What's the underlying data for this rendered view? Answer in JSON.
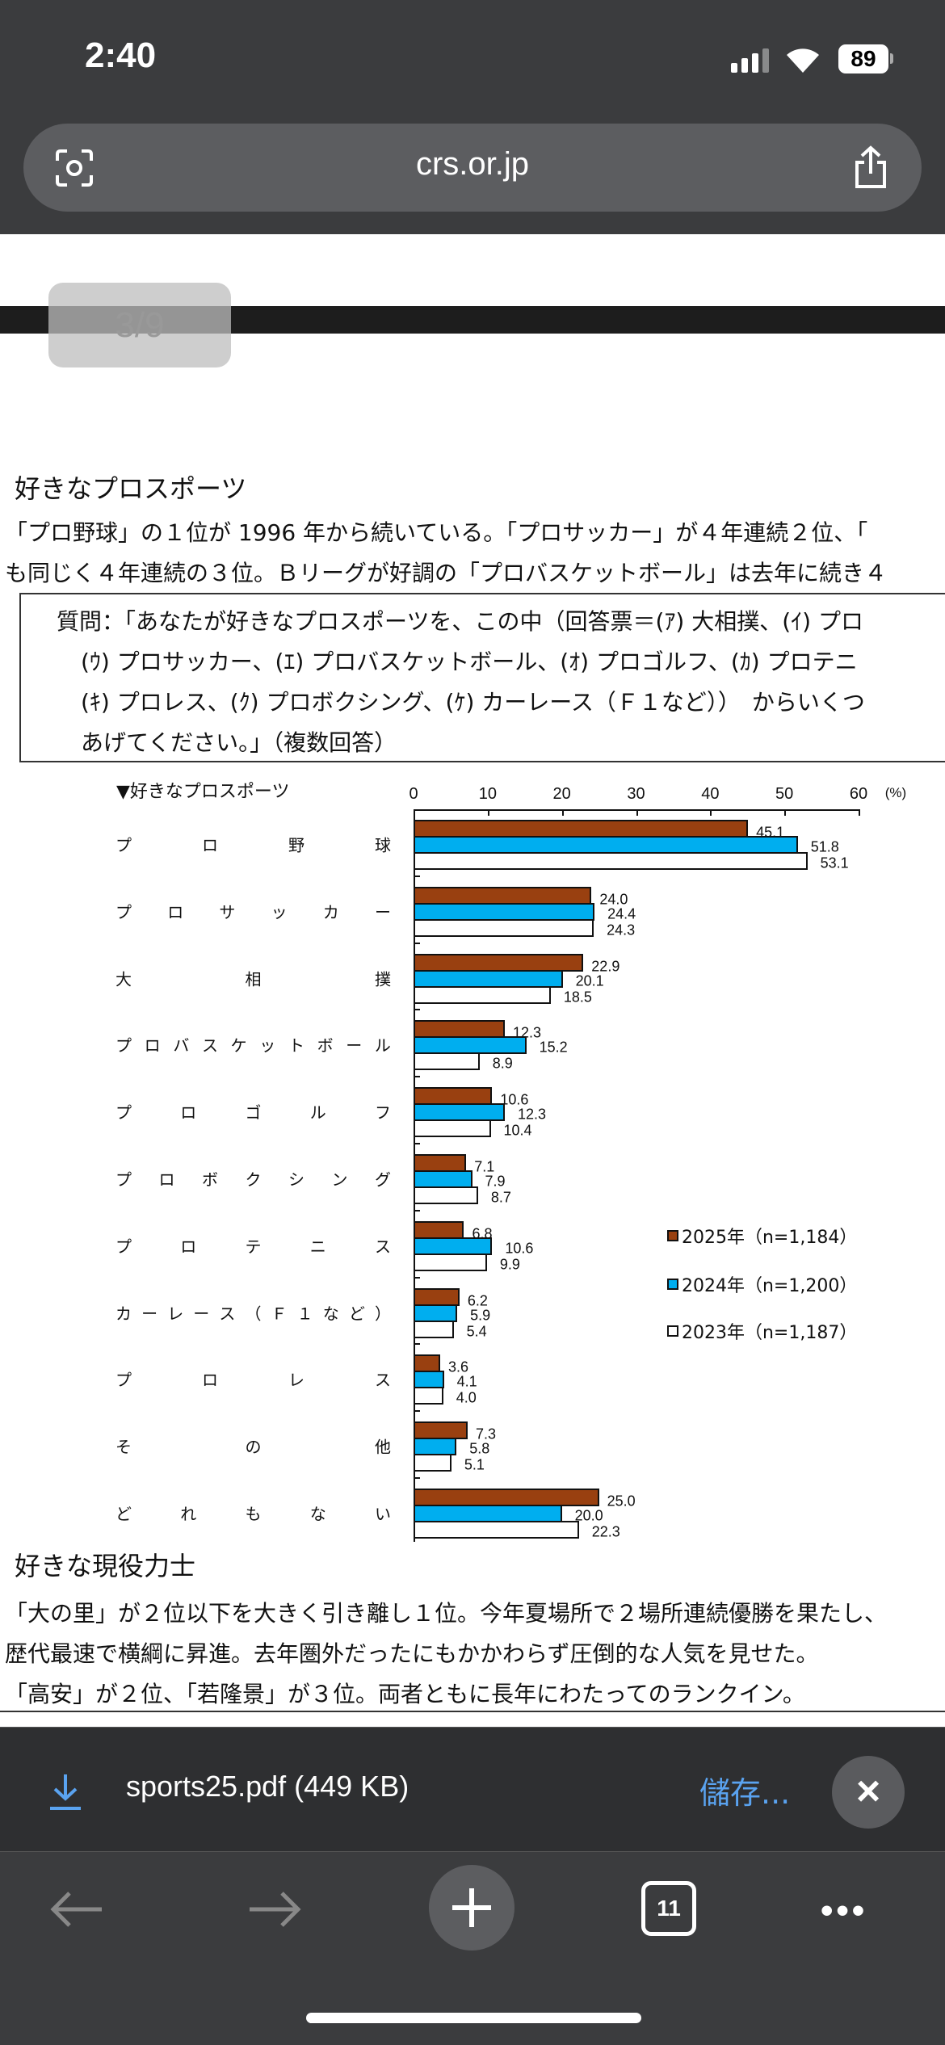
{
  "status_bar": {
    "time": "2:40",
    "battery": "89"
  },
  "browser": {
    "url": "crs.or.jp",
    "page_indicator": "3/9"
  },
  "section1": {
    "heading": "好きなプロスポーツ",
    "paragraph": [
      "「プロ野球」の１位が 1996 年から続いている。「プロサッカー」が４年連続２位、「",
      "も同じく４年連続の３位。Ｂリーグが好調の「プロバスケットボール」は去年に続き４"
    ],
    "question": [
      "質問：「あなたが好きなプロスポーツを、この中（回答票＝(ｱ) 大相撲、(ｲ) プロ",
      "(ｳ) プロサッカー、(ｴ) プロバスケットボール、(ｵ) プロゴルフ、(ｶ) プロテニ",
      "(ｷ) プロレス、(ｸ) プロボクシング、(ｹ) カーレース（Ｆ１など））　からいくつ",
      "あげてください。」（複数回答）"
    ]
  },
  "chart_data": {
    "type": "bar",
    "orientation": "horizontal",
    "title": "▼好きなプロスポーツ",
    "xlim": [
      0,
      60
    ],
    "x_ticks": [
      "0",
      "10",
      "20",
      "30",
      "40",
      "50",
      "60"
    ],
    "unit": "(%)",
    "grid": false,
    "legend_position": "right",
    "categories": [
      "プロ野球",
      "プロサッカー",
      "大相撲",
      "プロバスケットボール",
      "プロゴルフ",
      "プロボクシング",
      "プロテニス",
      "カーレース（Ｆ１など）",
      "プロレス",
      "その他",
      "どれもない"
    ],
    "series": [
      {
        "name": "2025年（n=1,184）",
        "color": "#994010",
        "values": [
          45.1,
          24.0,
          22.9,
          12.3,
          10.6,
          7.1,
          6.8,
          6.2,
          3.6,
          7.3,
          25.0
        ]
      },
      {
        "name": "2024年（n=1,200）",
        "color": "#00aeef",
        "values": [
          51.8,
          24.4,
          20.1,
          15.2,
          12.3,
          7.9,
          10.6,
          5.9,
          4.1,
          5.8,
          20.0
        ]
      },
      {
        "name": "2023年（n=1,187）",
        "color": "#ffffff",
        "values": [
          53.1,
          24.3,
          18.5,
          8.9,
          10.4,
          8.7,
          9.9,
          5.4,
          4.0,
          5.1,
          22.3
        ]
      }
    ]
  },
  "section2": {
    "heading": "好きな現役力士",
    "paragraph": [
      "「大の里」が２位以下を大きく引き離し１位。今年夏場所で２場所連続優勝を果たし、",
      "歴代最速で横綱に昇進。去年圏外だったにもかかわらず圧倒的な人気を見せた。",
      "「高安」が２位、「若隆景」が３位。両者ともに長年にわたってのランクイン。"
    ]
  },
  "download": {
    "filename": "sports25.pdf (449 KB)",
    "save_label": "儲存..."
  },
  "toolbar": {
    "tab_count": "11"
  }
}
